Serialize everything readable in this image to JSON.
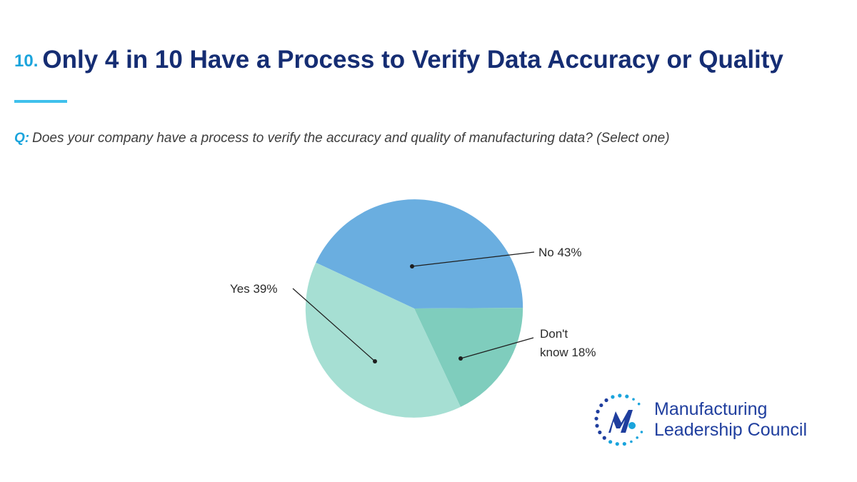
{
  "header": {
    "number": "10.",
    "title": "Only 4 in 10 Have a Process to Verify Data Accuracy or Quality"
  },
  "question": {
    "prefix": "Q:",
    "text": "Does your company have a process to verify the accuracy and quality of manufacturing data? (Select one)"
  },
  "chart_data": {
    "type": "pie",
    "title": "",
    "slices": [
      {
        "label": "No 43%",
        "value": 43,
        "color": "#6aaee0"
      },
      {
        "label_lines": [
          "Don't",
          "know 18%"
        ],
        "value": 18,
        "color": "#7fcdbd"
      },
      {
        "label": "Yes 39%",
        "value": 39,
        "color": "#a6dfd3"
      }
    ],
    "legend": "none"
  },
  "logo": {
    "line1": "Manufacturing",
    "line2": "Leadership Council",
    "colors": {
      "blue": "#1f3e9e",
      "accent": "#1aa4dc"
    }
  },
  "colors": {
    "title": "#152d73",
    "accent": "#1aa4dc",
    "rule": "#3fc0ec"
  }
}
